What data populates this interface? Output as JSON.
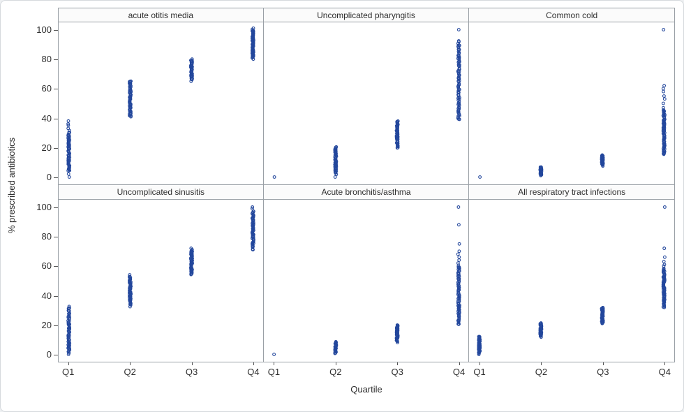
{
  "chart_data": {
    "type": "scatter",
    "layout": "panel-grid-2x3",
    "title": "",
    "xlabel": "Quartile",
    "ylabel": "% prescribed antibiotics",
    "ylim": [
      0,
      100
    ],
    "yticks": [
      0,
      20,
      40,
      60,
      80,
      100
    ],
    "categories": [
      "Q1",
      "Q2",
      "Q3",
      "Q4"
    ],
    "marker": {
      "shape": "open-circle",
      "color": "#23479c"
    },
    "panels": [
      {
        "title": "acute otitis media",
        "strips": [
          {
            "category": "Q1",
            "dense_range": [
              4,
              31
            ],
            "n": 70,
            "points": [
              0,
              2,
              33,
              35,
              36,
              38
            ]
          },
          {
            "category": "Q2",
            "dense_range": [
              41,
              65
            ],
            "n": 72,
            "points": []
          },
          {
            "category": "Q3",
            "dense_range": [
              66,
              79
            ],
            "n": 60,
            "points": [
              65,
              80
            ]
          },
          {
            "category": "Q4",
            "dense_range": [
              81,
              100
            ],
            "n": 80,
            "points": [
              80,
              101
            ]
          }
        ]
      },
      {
        "title": "Uncomplicated pharyngitis",
        "strips": [
          {
            "category": "Q1",
            "dense_range": null,
            "n": 0,
            "points": [
              0
            ]
          },
          {
            "category": "Q2",
            "dense_range": [
              2,
              20
            ],
            "n": 55,
            "points": [
              0
            ]
          },
          {
            "category": "Q3",
            "dense_range": [
              20,
              38
            ],
            "n": 58,
            "points": []
          },
          {
            "category": "Q4",
            "dense_range": [
              39,
              92
            ],
            "n": 95,
            "points": [
              100
            ]
          }
        ]
      },
      {
        "title": "Common cold",
        "strips": [
          {
            "category": "Q1",
            "dense_range": null,
            "n": 0,
            "points": [
              0
            ]
          },
          {
            "category": "Q2",
            "dense_range": [
              1,
              7
            ],
            "n": 30,
            "points": []
          },
          {
            "category": "Q3",
            "dense_range": [
              8,
              15
            ],
            "n": 45,
            "points": []
          },
          {
            "category": "Q4",
            "dense_range": [
              15,
              45
            ],
            "n": 85,
            "points": [
              47,
              50,
              53,
              55,
              58,
              60,
              62,
              100
            ]
          }
        ]
      },
      {
        "title": "Uncomplicated sinusitis",
        "strips": [
          {
            "category": "Q1",
            "dense_range": [
              1,
              32
            ],
            "n": 70,
            "points": [
              0
            ]
          },
          {
            "category": "Q2",
            "dense_range": [
              33,
              53
            ],
            "n": 62,
            "points": [
              54
            ]
          },
          {
            "category": "Q3",
            "dense_range": [
              54,
              71
            ],
            "n": 60,
            "points": [
              72
            ]
          },
          {
            "category": "Q4",
            "dense_range": [
              71,
              97
            ],
            "n": 75,
            "points": [
              99,
              100
            ]
          }
        ]
      },
      {
        "title": "Acute bronchitis/asthma",
        "strips": [
          {
            "category": "Q1",
            "dense_range": null,
            "n": 0,
            "points": [
              0
            ]
          },
          {
            "category": "Q2",
            "dense_range": [
              1,
              8
            ],
            "n": 35,
            "points": []
          },
          {
            "category": "Q3",
            "dense_range": [
              9,
              20
            ],
            "n": 55,
            "points": [
              8
            ]
          },
          {
            "category": "Q4",
            "dense_range": [
              20,
              60
            ],
            "n": 85,
            "points": [
              62,
              64,
              66,
              68,
              70,
              75,
              88,
              100
            ]
          }
        ]
      },
      {
        "title": "All respiratory tract infections",
        "strips": [
          {
            "category": "Q1",
            "dense_range": [
              1,
              12
            ],
            "n": 50,
            "points": [
              0
            ]
          },
          {
            "category": "Q2",
            "dense_range": [
              12,
              21
            ],
            "n": 55,
            "points": []
          },
          {
            "category": "Q3",
            "dense_range": [
              21,
              32
            ],
            "n": 58,
            "points": []
          },
          {
            "category": "Q4",
            "dense_range": [
              32,
              58
            ],
            "n": 85,
            "points": [
              60,
              61,
              63,
              66,
              72,
              100
            ]
          }
        ]
      }
    ]
  }
}
